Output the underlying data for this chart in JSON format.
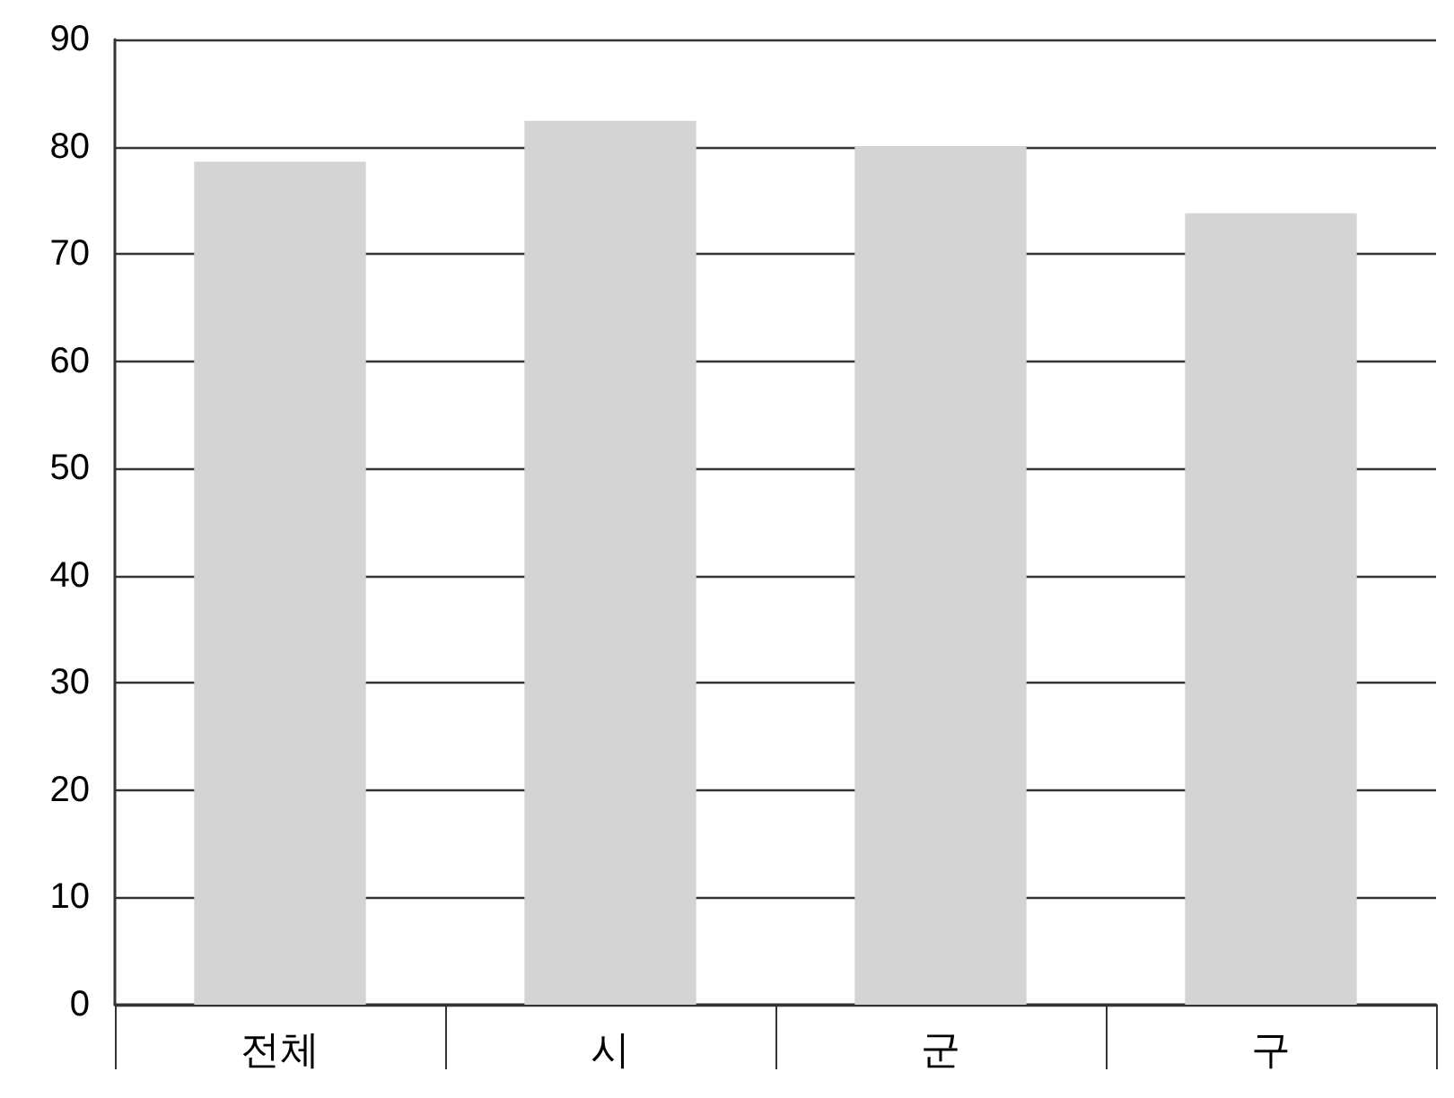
{
  "chart_data": {
    "type": "bar",
    "categories": [
      "전체",
      "시",
      "군",
      "구"
    ],
    "values": [
      78.6,
      82.4,
      80.0,
      73.8
    ],
    "color": "#d4d4d4",
    "ylim": [
      0,
      90
    ],
    "yticks": [
      0,
      10,
      20,
      30,
      40,
      50,
      60,
      70,
      80,
      90
    ],
    "grid": "y"
  }
}
